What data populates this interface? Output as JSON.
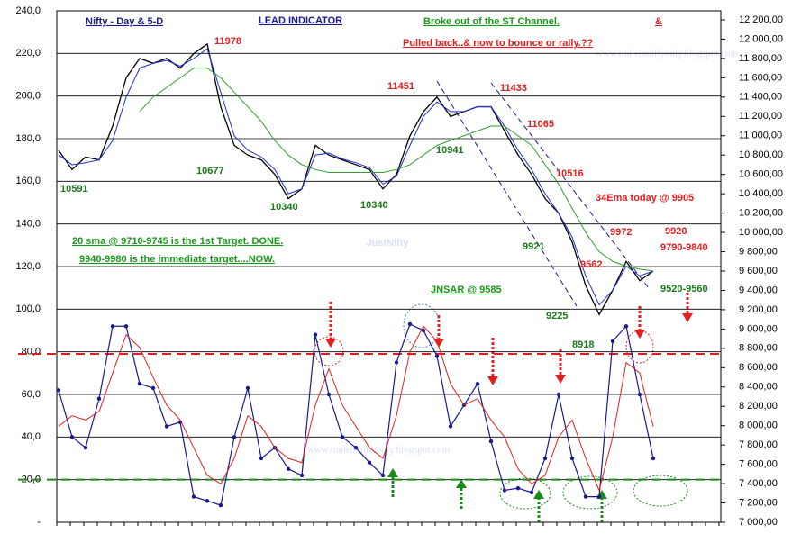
{
  "chart_data": {
    "type": "line",
    "title": "Nifty - Day &  5-D",
    "subtitle": "LEAD INDICATOR",
    "ylim": [
      0,
      240
    ],
    "yticks": [
      {
        "value": 0,
        "label": "-"
      },
      {
        "value": 20,
        "label": "20,0"
      },
      {
        "value": 40,
        "label": "40,0"
      },
      {
        "value": 60,
        "label": "60,0"
      },
      {
        "value": 80,
        "label": "80,0"
      },
      {
        "value": 100,
        "label": "100,0"
      },
      {
        "value": 120,
        "label": "120,0"
      },
      {
        "value": 140,
        "label": "140,0"
      },
      {
        "value": 160,
        "label": "160,0"
      },
      {
        "value": 180,
        "label": "180,0"
      },
      {
        "value": 200,
        "label": "200,0"
      },
      {
        "value": 220,
        "label": "220,0"
      },
      {
        "value": 240,
        "label": "240,0"
      }
    ],
    "y2lim": [
      7000,
      12293
    ],
    "y2ticks": [
      {
        "value": 7000,
        "label": "7 000,00"
      },
      {
        "value": 7200,
        "label": "7 200,00"
      },
      {
        "value": 7400,
        "label": "7 400,00"
      },
      {
        "value": 7600,
        "label": "7 600,00"
      },
      {
        "value": 7800,
        "label": "7 800,00"
      },
      {
        "value": 8000,
        "label": "8 000,00"
      },
      {
        "value": 8200,
        "label": "8 200,00"
      },
      {
        "value": 8400,
        "label": "8 400,00"
      },
      {
        "value": 8600,
        "label": "8 600,00"
      },
      {
        "value": 8800,
        "label": "8 800,00"
      },
      {
        "value": 9000,
        "label": "9 000,00"
      },
      {
        "value": 9200,
        "label": "9 200,00"
      },
      {
        "value": 9400,
        "label": "9 400,00"
      },
      {
        "value": 9600,
        "label": "9 600,00"
      },
      {
        "value": 9800,
        "label": "9 800,00"
      },
      {
        "value": 10000,
        "label": "10 000,00"
      },
      {
        "value": 10200,
        "label": "10 200,00"
      },
      {
        "value": 10400,
        "label": "10 400,00"
      },
      {
        "value": 10600,
        "label": "10 600,00"
      },
      {
        "value": 10800,
        "label": "10 800,00"
      },
      {
        "value": 11000,
        "label": "11 000,00"
      },
      {
        "value": 11200,
        "label": "11 200,00"
      },
      {
        "value": 11400,
        "label": "11 400,00"
      },
      {
        "value": 11600,
        "label": "11 600,00"
      },
      {
        "value": 11800,
        "label": "11 800,00"
      },
      {
        "value": 12000,
        "label": "12 000,00"
      },
      {
        "value": 12200,
        "label": "12 200,00"
      }
    ],
    "grid": true,
    "series": [
      {
        "color": "#000000",
        "axis": "y2",
        "width": 1.3,
        "values": [
          10850,
          10650,
          10780,
          10750,
          11100,
          11600,
          11800,
          11750,
          11800,
          11700,
          11850,
          11950,
          11300,
          10900,
          10800,
          10750,
          10600,
          10350,
          10450,
          10900,
          10800,
          10750,
          10700,
          10650,
          10450,
          10600,
          11000,
          11250,
          11400,
          11200,
          11250,
          11300,
          11300,
          11050,
          10800,
          10600,
          10350,
          10200,
          9900,
          9450,
          9150,
          9400,
          9700,
          9500,
          9600
        ]
      },
      {
        "color": "#1f2fd0",
        "axis": "y2",
        "width": 1,
        "values": [
          10800,
          10700,
          10720,
          10750,
          10950,
          11400,
          11700,
          11750,
          11780,
          11720,
          11800,
          11900,
          11450,
          11000,
          10850,
          10780,
          10650,
          10400,
          10450,
          10800,
          10820,
          10760,
          10720,
          10670,
          10500,
          10580,
          10900,
          11200,
          11350,
          11250,
          11250,
          11300,
          11300,
          11100,
          10850,
          10650,
          10400,
          10200,
          9950,
          9550,
          9250,
          9400,
          9650,
          9550,
          9600
        ]
      },
      {
        "color": "#2e9e2e",
        "axis": "y2",
        "width": 1,
        "values": [
          null,
          null,
          null,
          null,
          null,
          null,
          11250,
          11400,
          11500,
          11600,
          11700,
          11700,
          11600,
          11450,
          11300,
          11150,
          10950,
          10800,
          10700,
          10650,
          10620,
          10620,
          10620,
          10620,
          10620,
          10650,
          10700,
          10800,
          10900,
          10950,
          11000,
          11050,
          11100,
          11100,
          11000,
          10900,
          10700,
          10500,
          10250,
          10000,
          9800,
          9700,
          9650,
          9620,
          9600
        ]
      },
      {
        "color": "#1a1a8c",
        "axis": "y",
        "width": 1.2,
        "markers": true,
        "values": [
          62,
          40,
          35,
          58,
          92,
          92,
          65,
          63,
          45,
          47,
          12,
          10,
          8,
          40,
          63,
          30,
          35,
          25,
          22,
          88,
          60,
          40,
          35,
          28,
          22,
          75,
          93,
          90,
          78,
          45,
          55,
          65,
          38,
          15,
          16,
          14,
          30,
          60,
          30,
          12,
          12,
          85,
          92,
          60,
          30
        ]
      },
      {
        "color": "#e02020",
        "axis": "y",
        "width": 1,
        "values": [
          45,
          50,
          48,
          52,
          70,
          88,
          82,
          68,
          55,
          48,
          35,
          22,
          18,
          30,
          50,
          45,
          35,
          30,
          28,
          55,
          72,
          55,
          45,
          35,
          30,
          50,
          80,
          92,
          85,
          65,
          55,
          58,
          48,
          40,
          25,
          18,
          22,
          40,
          48,
          30,
          15,
          40,
          75,
          70,
          45
        ]
      }
    ],
    "hlines": [
      {
        "value": 79,
        "color": "#e02020",
        "axis": "y"
      },
      {
        "value": 20,
        "color": "#1a8a1a",
        "axis": "y"
      }
    ],
    "annotations": [
      {
        "text": "Broke out of the ST Channel.",
        "color": "#1a9a1a"
      },
      {
        "text": "&",
        "color": "#e02020"
      },
      {
        "text": "Pulled back..& now to bounce or rally.??",
        "color": "#e02020"
      },
      {
        "text": "11978",
        "color": "#e02020"
      },
      {
        "text": "10591",
        "color": "#1a7a1a"
      },
      {
        "text": "10677",
        "color": "#1a7a1a"
      },
      {
        "text": "10340",
        "color": "#1a7a1a"
      },
      {
        "text": "10340",
        "color": "#1a7a1a"
      },
      {
        "text": "11451",
        "color": "#e02020"
      },
      {
        "text": "11433",
        "color": "#e02020"
      },
      {
        "text": "10941",
        "color": "#1a7a1a"
      },
      {
        "text": "11065",
        "color": "#e02020"
      },
      {
        "text": "10516",
        "color": "#e02020"
      },
      {
        "text": "34Ema today @ 9905",
        "color": "#e02020"
      },
      {
        "text": "9920",
        "color": "#e02020"
      },
      {
        "text": "9972",
        "color": "#e02020"
      },
      {
        "text": "9790-9840",
        "color": "#e02020"
      },
      {
        "text": "9921",
        "color": "#1a7a1a"
      },
      {
        "text": "9562",
        "color": "#e02020"
      },
      {
        "text": "9520-9560",
        "color": "#1a7a1a"
      },
      {
        "text": "9225",
        "color": "#1a7a1a"
      },
      {
        "text": "8918",
        "color": "#1a7a1a"
      },
      {
        "text": "20 sma @ 9710-9745 is the 1st Target. DONE.",
        "color": "#1a9a1a"
      },
      {
        "text": "9940-9980 is the immediate target....NOW.",
        "color": "#1a9a1a"
      },
      {
        "text": "JNSAR @ 9585",
        "color": "#1a9a1a"
      }
    ],
    "watermarks": [
      "www.tradeinniftyonly.blogspot.com",
      "JustNifty",
      "www.tradeinniftyonly.blogspot.com"
    ]
  }
}
